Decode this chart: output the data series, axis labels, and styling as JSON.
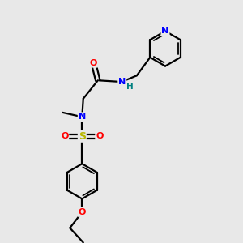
{
  "bg_color": "#e8e8e8",
  "bond_color": "#000000",
  "atom_colors": {
    "N": "#0000ff",
    "O": "#ff0000",
    "S": "#b8b800",
    "H": "#008080",
    "C": "#000000"
  }
}
